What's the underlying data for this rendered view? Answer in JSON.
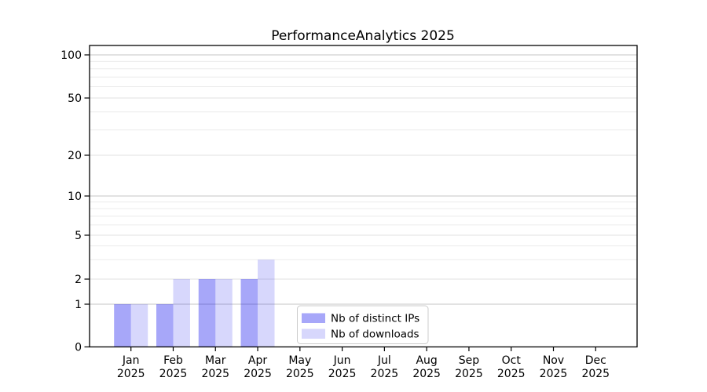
{
  "chart_data": {
    "type": "bar",
    "title": "PerformanceAnalytics 2025",
    "categories": [
      "Jan",
      "Feb",
      "Mar",
      "Apr",
      "May",
      "Jun",
      "Jul",
      "Aug",
      "Sep",
      "Oct",
      "Nov",
      "Dec"
    ],
    "category_year": "2025",
    "series": [
      {
        "name": "Nb of distinct IPs",
        "base_color": "#0000ee",
        "fill_opacity": 0.345,
        "rendered_hex": "#a8a8f9",
        "values": [
          1,
          1,
          2,
          2,
          0,
          0,
          0,
          0,
          0,
          0,
          0,
          0
        ]
      },
      {
        "name": "Nb of downloads",
        "base_color": "#0000ee",
        "fill_opacity": 0.155,
        "rendered_hex": "#d7d7fc",
        "values": [
          1,
          2,
          2,
          3,
          0,
          0,
          0,
          0,
          0,
          0,
          0,
          0
        ]
      }
    ],
    "y_axis": {
      "scale": "symlog-like (linear 0-1, log above 1)",
      "tick_values": [
        0,
        1,
        2,
        5,
        10,
        20,
        50,
        100
      ],
      "tick_labels": [
        "0",
        "1",
        "2",
        "5",
        "10",
        "20",
        "50",
        "100"
      ],
      "minor_values": [
        3,
        4,
        6,
        7,
        8,
        9,
        30,
        40,
        60,
        70,
        80,
        90
      ],
      "decade_values": [
        1,
        10,
        100
      ],
      "ylim": [
        0,
        117
      ]
    },
    "grid": "horizontal",
    "legend": {
      "position": "bottom-center-inside",
      "entries": [
        "Nb of distinct IPs",
        "Nb of downloads"
      ]
    },
    "colors": {
      "background": "#ffffff",
      "axis": "#000000",
      "grid_decade": "#c6c6c6",
      "grid_labeled": "#e2e2e2",
      "grid_minor": "#ececec",
      "legend_border": "#cccccc",
      "legend_background": "#ffffff"
    }
  }
}
